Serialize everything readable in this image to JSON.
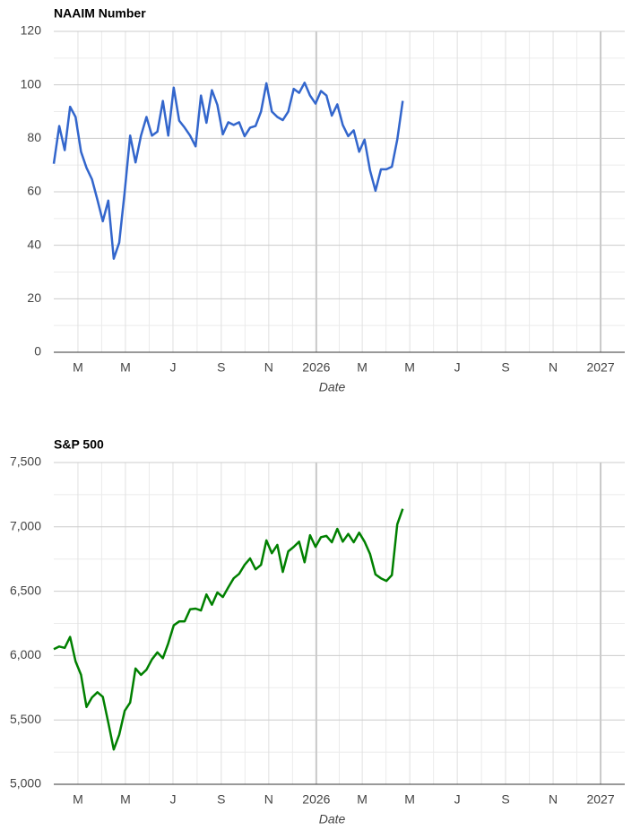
{
  "chart_data": [
    {
      "type": "line",
      "title": "NAAIM Number",
      "xlabel": "Date",
      "x": [
        "2025-01-29",
        "2025-02-05",
        "2025-02-12",
        "2025-02-19",
        "2025-02-26",
        "2025-03-05",
        "2025-03-12",
        "2025-03-19",
        "2025-03-26",
        "2025-04-02",
        "2025-04-09",
        "2025-04-16",
        "2025-04-23",
        "2025-04-30",
        "2025-05-07",
        "2025-05-14",
        "2025-05-21",
        "2025-05-28",
        "2025-06-04",
        "2025-06-11",
        "2025-06-18",
        "2025-06-25",
        "2025-07-02",
        "2025-07-09",
        "2025-07-16",
        "2025-07-23",
        "2025-07-30",
        "2025-08-06",
        "2025-08-13",
        "2025-08-20",
        "2025-08-27",
        "2025-09-03",
        "2025-09-10",
        "2025-09-17",
        "2025-09-24",
        "2025-10-01",
        "2025-10-08",
        "2025-10-15",
        "2025-10-22",
        "2025-10-29",
        "2025-11-05",
        "2025-11-12",
        "2025-11-19",
        "2025-11-26",
        "2025-12-03",
        "2025-12-10",
        "2025-12-17",
        "2025-12-24",
        "2025-12-31",
        "2026-01-07",
        "2026-01-14",
        "2026-01-21",
        "2026-01-28",
        "2026-02-04",
        "2026-02-11",
        "2026-02-18",
        "2026-02-25",
        "2026-03-04",
        "2026-03-11",
        "2026-03-18",
        "2026-03-25",
        "2026-04-01",
        "2026-04-08",
        "2026-04-15",
        "2026-04-22"
      ],
      "series": [
        {
          "name": "NAAIM Number",
          "color": "#3366cc",
          "values": [
            70.5,
            84.6,
            75.6,
            91.8,
            88,
            75,
            69,
            64.7,
            57,
            49,
            56.7,
            35,
            41,
            60,
            81,
            71,
            81,
            88,
            81,
            82.5,
            94,
            81,
            99,
            86.6,
            84,
            81,
            77,
            96,
            85.8,
            98,
            92.5,
            81.5,
            86,
            85,
            86,
            80.8,
            84,
            84.6,
            90,
            100.6,
            90,
            88,
            86.8,
            90,
            98.5,
            97,
            100.8,
            96,
            93,
            97.7,
            96,
            88.5,
            92.7,
            85,
            80.8,
            83,
            75,
            79.5,
            68,
            60.4,
            68.4,
            68.4,
            69.4,
            79.5,
            94
          ]
        }
      ],
      "xlim": [
        "2025-01-29",
        "2027-02-01"
      ],
      "xticks": [
        {
          "value": "2025-03-01",
          "label": "M"
        },
        {
          "value": "2025-05-01",
          "label": "M"
        },
        {
          "value": "2025-07-01",
          "label": "J"
        },
        {
          "value": "2025-09-01",
          "label": "S"
        },
        {
          "value": "2025-11-01",
          "label": "N"
        },
        {
          "value": "2026-01-01",
          "label": "2026"
        },
        {
          "value": "2026-03-01",
          "label": "M"
        },
        {
          "value": "2026-05-01",
          "label": "M"
        },
        {
          "value": "2026-07-01",
          "label": "J"
        },
        {
          "value": "2026-09-01",
          "label": "S"
        },
        {
          "value": "2026-11-01",
          "label": "N"
        },
        {
          "value": "2027-01-01",
          "label": "2027"
        }
      ],
      "ylim": [
        0,
        120
      ],
      "yticks": [
        0,
        20,
        40,
        60,
        80,
        100,
        120
      ],
      "grid": true
    },
    {
      "type": "line",
      "title": "S&P 500",
      "xlabel": "Date",
      "x": [
        "2025-01-29",
        "2025-02-05",
        "2025-02-12",
        "2025-02-19",
        "2025-02-26",
        "2025-03-05",
        "2025-03-12",
        "2025-03-19",
        "2025-03-26",
        "2025-04-02",
        "2025-04-09",
        "2025-04-16",
        "2025-04-23",
        "2025-04-30",
        "2025-05-07",
        "2025-05-14",
        "2025-05-21",
        "2025-05-28",
        "2025-06-04",
        "2025-06-11",
        "2025-06-18",
        "2025-06-25",
        "2025-07-02",
        "2025-07-09",
        "2025-07-16",
        "2025-07-23",
        "2025-07-30",
        "2025-08-06",
        "2025-08-13",
        "2025-08-20",
        "2025-08-27",
        "2025-09-03",
        "2025-09-10",
        "2025-09-17",
        "2025-09-24",
        "2025-10-01",
        "2025-10-08",
        "2025-10-15",
        "2025-10-22",
        "2025-10-29",
        "2025-11-05",
        "2025-11-12",
        "2025-11-19",
        "2025-11-26",
        "2025-12-03",
        "2025-12-10",
        "2025-12-17",
        "2025-12-24",
        "2025-12-31",
        "2026-01-07",
        "2026-01-14",
        "2026-01-21",
        "2026-01-28",
        "2026-02-04",
        "2026-02-11",
        "2026-02-18",
        "2026-02-25",
        "2026-03-04",
        "2026-03-11",
        "2026-03-18",
        "2026-03-25",
        "2026-04-01",
        "2026-04-08",
        "2026-04-15",
        "2026-04-22"
      ],
      "series": [
        {
          "name": "S&P 500",
          "color": "#008000",
          "values": [
            6050,
            6070,
            6060,
            6145,
            5955,
            5850,
            5600,
            5675,
            5715,
            5680,
            5480,
            5270,
            5385,
            5570,
            5635,
            5900,
            5850,
            5890,
            5970,
            6025,
            5980,
            6095,
            6235,
            6265,
            6265,
            6360,
            6365,
            6350,
            6475,
            6395,
            6490,
            6455,
            6530,
            6600,
            6635,
            6705,
            6755,
            6670,
            6705,
            6895,
            6795,
            6860,
            6650,
            6810,
            6845,
            6885,
            6725,
            6935,
            6845,
            6920,
            6930,
            6880,
            6985,
            6885,
            6945,
            6880,
            6955,
            6885,
            6790,
            6630,
            6600,
            6580,
            6625,
            7020,
            7140
          ]
        }
      ],
      "xlim": [
        "2025-01-29",
        "2027-02-01"
      ],
      "xticks": [
        {
          "value": "2025-03-01",
          "label": "M"
        },
        {
          "value": "2025-05-01",
          "label": "M"
        },
        {
          "value": "2025-07-01",
          "label": "J"
        },
        {
          "value": "2025-09-01",
          "label": "S"
        },
        {
          "value": "2025-11-01",
          "label": "N"
        },
        {
          "value": "2026-01-01",
          "label": "2026"
        },
        {
          "value": "2026-03-01",
          "label": "M"
        },
        {
          "value": "2026-05-01",
          "label": "M"
        },
        {
          "value": "2026-07-01",
          "label": "J"
        },
        {
          "value": "2026-09-01",
          "label": "S"
        },
        {
          "value": "2026-11-01",
          "label": "N"
        },
        {
          "value": "2027-01-01",
          "label": "2027"
        }
      ],
      "ylim": [
        5000,
        7500
      ],
      "yticks": [
        {
          "value": 5000,
          "label": "5,000"
        },
        {
          "value": 5500,
          "label": "5,500"
        },
        {
          "value": 6000,
          "label": "6,000"
        },
        {
          "value": 6500,
          "label": "6,500"
        },
        {
          "value": 7000,
          "label": "7,000"
        },
        {
          "value": 7500,
          "label": "7,500"
        }
      ],
      "grid": true
    }
  ]
}
